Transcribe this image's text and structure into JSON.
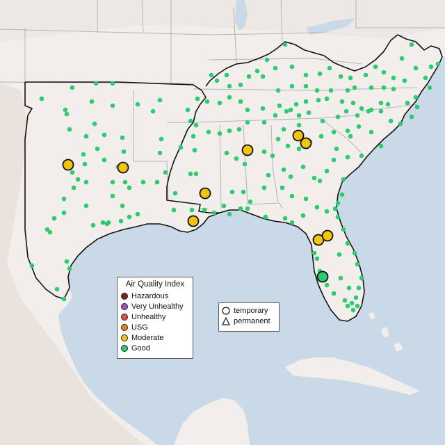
{
  "map": {
    "colors": {
      "water": "#c9d9e8",
      "land": "#f1eeeb",
      "terrain": "#e6ddd7",
      "state_border": "#b5b5b5",
      "region_border": "#111111",
      "good": "#2ecc71",
      "moderate": "#f1c40f",
      "usg": "#e67e22",
      "unhealthy": "#e74c3c",
      "very_unhealthy": "#9b59b6",
      "hazardous": "#7b241c"
    }
  },
  "legend": {
    "title": "Air Quality Index",
    "items": [
      {
        "label": "Hazardous",
        "color": "#7b241c"
      },
      {
        "label": "Very Unhealthy",
        "color": "#9b59b6"
      },
      {
        "label": "Unhealthy",
        "color": "#e74c3c"
      },
      {
        "label": "USG",
        "color": "#e67e22"
      },
      {
        "label": "Moderate",
        "color": "#f1c40f"
      },
      {
        "label": "Good",
        "color": "#2ecc71"
      }
    ]
  },
  "type_legend": {
    "items": [
      {
        "label": "temporary",
        "shape": "circle"
      },
      {
        "label": "permanent",
        "shape": "triangle"
      }
    ]
  },
  "monitors_large": [
    {
      "category": "Moderate",
      "color": "#f1c40f"
    },
    {
      "category": "Moderate",
      "color": "#f1c40f"
    },
    {
      "category": "Moderate",
      "color": "#f1c40f"
    },
    {
      "category": "Moderate",
      "color": "#f1c40f"
    },
    {
      "category": "Moderate",
      "color": "#f1c40f"
    },
    {
      "category": "Moderate",
      "color": "#f1c40f"
    },
    {
      "category": "Moderate",
      "color": "#f1c40f"
    },
    {
      "category": "Moderate",
      "color": "#f1c40f"
    },
    {
      "category": "Moderate",
      "color": "#f1c40f"
    },
    {
      "category": "Good",
      "color": "#2ecc71"
    }
  ]
}
